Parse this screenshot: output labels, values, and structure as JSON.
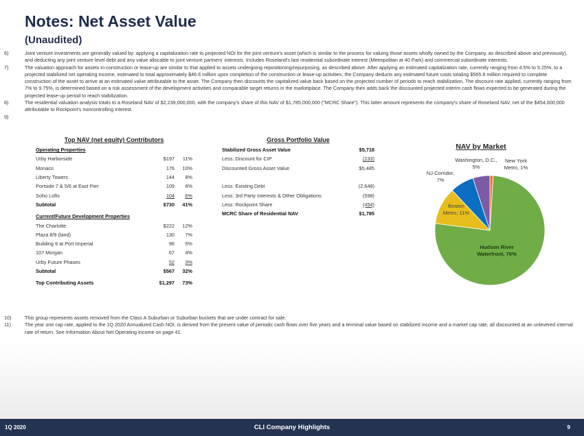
{
  "header": {
    "title": "Notes: Net Asset Value",
    "subtitle": "(Unaudited)"
  },
  "notes_top": [
    {
      "num": "6)",
      "text": "Joint venture investments are generally valued by: applying a capitalization rate to projected NOI for the joint venture's asset (which is similar to the process for valuing those assets wholly owned by the Company, as described above and previously), and deducting any joint venture level debt and any value allocable to joint venture partners' interests. Includes Roseland's last residential subordinate interest (Metropolitan at 40 Park) and commercial subordinate interests."
    },
    {
      "num": "7)",
      "text": "The valuation approach for assets in-construction or lease-up are similar to that applied to assets undergoing repositioning/repurposing, as described above.  After applying an estimated capitalization rate, currently ranging from 4.5% to 5.25%, to a projected stabilized net operating income, estimated to total approximately $46.6 million  upon completion of the construction or lease-up activities, the Company deducts any estimated future costs totaling $565.9 million required to complete construction of the asset to arrive at an estimated value attributable to the asset.  The Company then discounts the capitalized value back based on the projected number of periods to reach stabilization. The discount rate applied, currently ranging from 7% to 9.75%, is determined based on a risk assessment of the development activities and comparable target returns in the marketplace.  The Company then adds back the discounted projected interim cash flows expected to be generated during the projected lease-up period to reach stabilization."
    },
    {
      "num": "8)",
      "text": "The residential valuation analysis totals to a Roseland NAV of $2,239,000,000, with the company's share of this NAV of $1,785,000,000 (\"MCRC Share\").  This latter amount represents the company's share of Roseland NAV, net of the $454,000,000 attributable to Rockpoint's noncontrolling interest."
    },
    {
      "num": "9)",
      "text": ""
    }
  ],
  "notes_bottom": [
    {
      "num": "10)",
      "text": "This group represents assets removed from the Class A Suburban or Suburban buckets that are under contract for sale."
    },
    {
      "num": "11)",
      "text": "The year one cap rate, applied to the 1Q 2020 Annualized Cash NOI, is derived from the present value of periodic cash flows over five years and a terminal value based on stabilized income and a market cap rate, all discounted at an unlevered internal rate of return. See Information About Net Operating Income on page 41."
    }
  ],
  "contributors": {
    "title": "Top NAV (net equity) Contributors",
    "rows": [
      {
        "label": "Operating Properties",
        "value": "",
        "pct": "",
        "type": "section"
      },
      {
        "label": "Urby Harborside",
        "value": "$197",
        "pct": "11%"
      },
      {
        "label": "Monaco",
        "value": "176",
        "pct": "10%"
      },
      {
        "label": "Liberty Towers",
        "value": "144",
        "pct": "8%"
      },
      {
        "label": "Portside 7 & 5/6 at East Pier",
        "value": "109",
        "pct": "6%"
      },
      {
        "label": "Soho Lofts",
        "value": "104",
        "pct": "6%",
        "type": "under"
      },
      {
        "label": "Subtotal",
        "value": "$730",
        "pct": "41%",
        "type": "bold"
      },
      {
        "label": "Current/Future Development Properties",
        "value": "",
        "pct": "",
        "type": "section"
      },
      {
        "label": "The Charlotte",
        "value": "$222",
        "pct": "12%"
      },
      {
        "label": "Plaza 8/9 (land)",
        "value": "130",
        "pct": "7%"
      },
      {
        "label": "Building 9 at Port Imperial",
        "value": "96",
        "pct": "5%"
      },
      {
        "label": "107 Morgan",
        "value": "67",
        "pct": "4%"
      },
      {
        "label": "Urby Future Phases",
        "value": "52",
        "pct": "3%",
        "type": "under"
      },
      {
        "label": "Subtotal",
        "value": "$567",
        "pct": "32%",
        "type": "bold"
      },
      {
        "label": "Top Contributing Assets",
        "value": "$1,297",
        "pct": "73%",
        "type": "bold"
      }
    ]
  },
  "gross": {
    "title": "Gross Portfolio Value",
    "rows": [
      {
        "label": "Stabilized Gross Asset Value",
        "value": "$5,718",
        "type": "bold"
      },
      {
        "label": "Less: Discount for CIP",
        "value": "(233)",
        "type": "under"
      },
      {
        "label": "Discounted Gross Asset Value",
        "value": "$5,485"
      },
      {
        "label": "",
        "value": ""
      },
      {
        "label": "Less: Existing Debt",
        "value": "(2,648)"
      },
      {
        "label": "Less: 3rd Party Interests & Other Obligations",
        "value": "(598)"
      },
      {
        "label": "Less: Rockpoint Share",
        "value": "(454)",
        "type": "under"
      },
      {
        "label": "MCRC Share of Residential NAV",
        "value": "$1,785",
        "type": "bold"
      }
    ]
  },
  "chart_data": {
    "type": "pie",
    "title": "NAV by Market",
    "slices": [
      {
        "label": "New York Metro",
        "value": 1,
        "display": "New York Metro, 1%",
        "color": "#ED7D31"
      },
      {
        "label": "Hudson River Waterfront",
        "value": 76,
        "display": "Hudson River Waterfront, 76%",
        "color": "#70AD47"
      },
      {
        "label": "Boston Metro",
        "value": 11,
        "display": "Boston Metro, 11%",
        "color": "#E8BE1C"
      },
      {
        "label": "NJ Corridor",
        "value": 7,
        "display": "NJ Corridor, 7%",
        "color": "#0A6FC2"
      },
      {
        "label": "Washington, D.C.",
        "value": 5,
        "display": "Washington, D.C., 5%",
        "color": "#7B5BA6"
      }
    ]
  },
  "footer": {
    "left": "1Q 2020",
    "center": "CLI Company Highlights",
    "page": "9"
  }
}
